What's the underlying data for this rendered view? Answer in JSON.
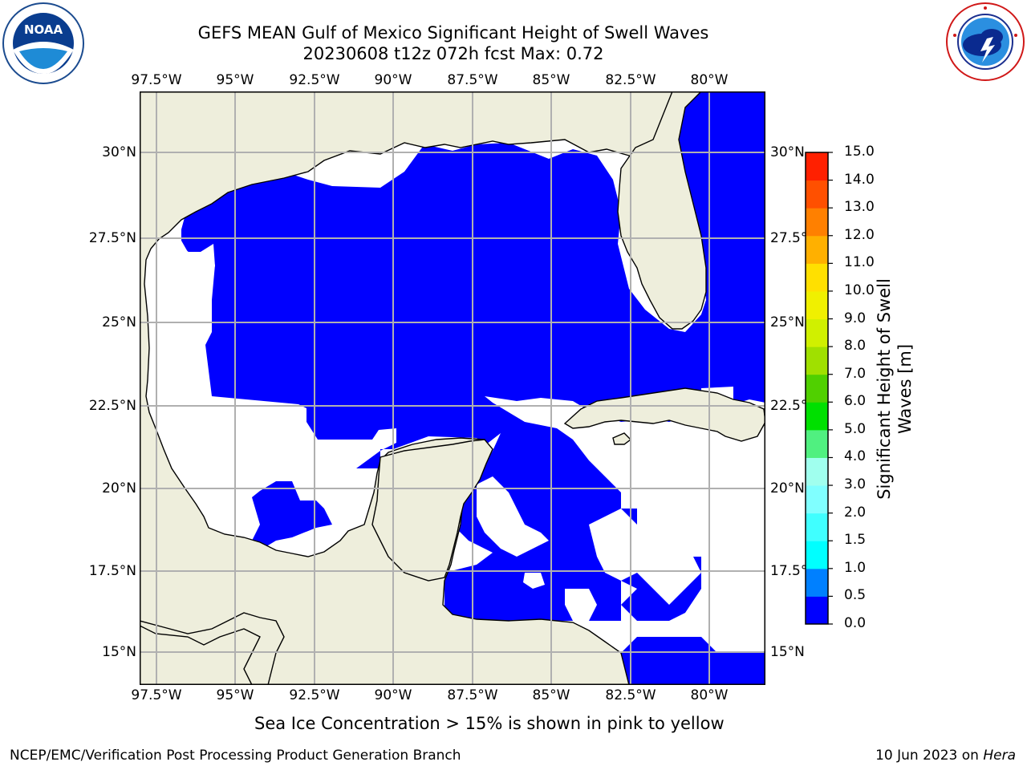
{
  "header": {
    "title_line1": "GEFS MEAN Gulf of Mexico Significant Height of Swell Waves",
    "title_line2": "20230608 t12z 072h fcst   Max: 0.72"
  },
  "logos": {
    "noaa": {
      "text": "NOAA",
      "ring_text": "NATIONAL OCEANIC AND ATMOSPHERIC ADMINISTRATION · U.S. DEPARTMENT OF COMMERCE"
    },
    "nws": {
      "ring_text": "NATIONAL WEATHER SERVICE"
    }
  },
  "map": {
    "lon_labels": [
      "97.5°W",
      "95°W",
      "92.5°W",
      "90°W",
      "87.5°W",
      "85°W",
      "82.5°W",
      "80°W"
    ],
    "lat_labels_left": [
      "30°N",
      "27.5°N",
      "25°N",
      "22.5°N",
      "20°N",
      "17.5°N",
      "15°N"
    ],
    "lat_labels_right": [
      "30°N",
      "27.5°",
      "25°N",
      "22.5°",
      "20°N",
      "17.5°",
      "15°N"
    ],
    "colors": {
      "land": "#eeeedc",
      "no_data": "#ffffff",
      "level_0_0_5": "#0000ff",
      "level_0_5_1_0": "#0080ff",
      "coastline": "#000000",
      "grid": "#b0b0b0"
    }
  },
  "colorbar": {
    "title_line1": "Significant Height of Swell",
    "title_line2": "Waves [m]",
    "tick_labels": [
      "0.0",
      "0.5",
      "1.0",
      "1.5",
      "2.0",
      "3.0",
      "4.0",
      "5.0",
      "6.0",
      "7.0",
      "8.0",
      "9.0",
      "10.0",
      "11.0",
      "12.0",
      "13.0",
      "14.0",
      "15.0"
    ],
    "level_colors": [
      "#0000ff",
      "#0080ff",
      "#00ffff",
      "#40ffff",
      "#80ffff",
      "#a0ffee",
      "#50f080",
      "#00e000",
      "#50d000",
      "#a0e000",
      "#d0f000",
      "#f0f000",
      "#ffe000",
      "#ffb000",
      "#ff8000",
      "#ff5000",
      "#ff2000",
      "#ff0000"
    ]
  },
  "note": "Sea Ice Concentration > 15% is shown in pink to yellow",
  "footer": {
    "left": "NCEP/EMC/Verification Post Processing Product Generation Branch",
    "right_prefix": "10 Jun 2023 on ",
    "right_machine": "Hera"
  }
}
